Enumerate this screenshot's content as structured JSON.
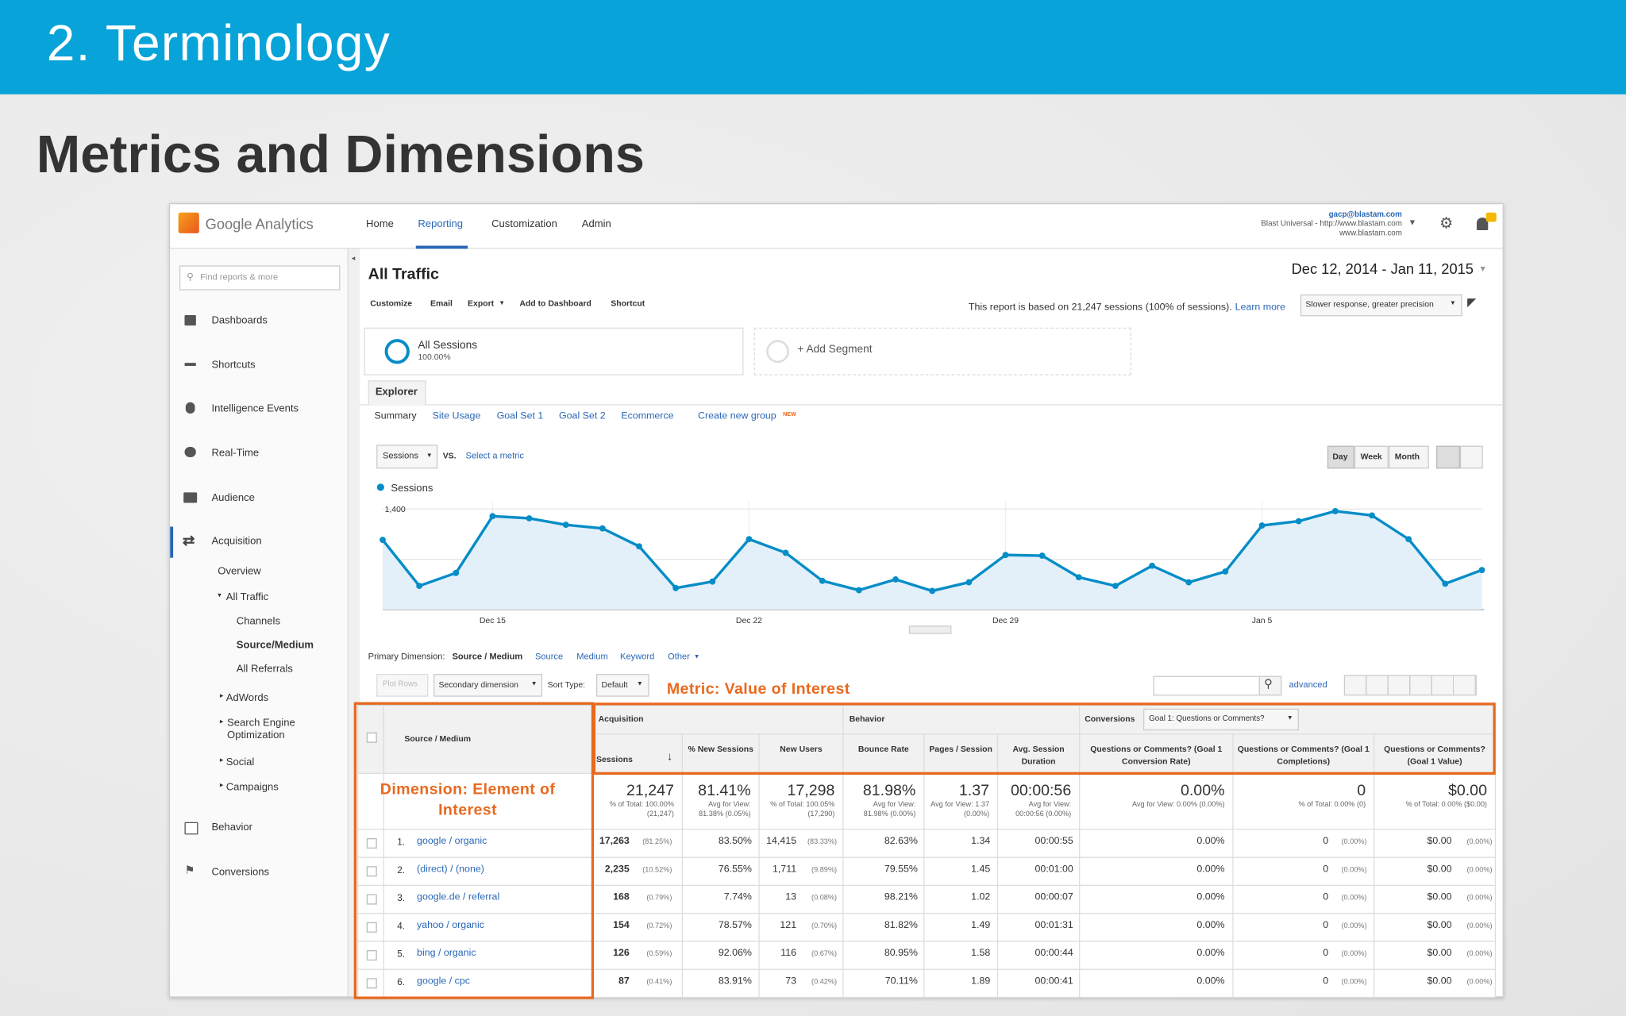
{
  "header": {
    "title": "2. Terminology",
    "subtitle": "Metrics and Dimensions"
  },
  "app": {
    "logo": "Google Analytics",
    "nav": [
      "Home",
      "Reporting",
      "Customization",
      "Admin"
    ],
    "account": {
      "email": "gacp@blastam.com",
      "property": "Blast Universal - http://www.blastam.com",
      "view": "www.blastam.com"
    },
    "search_placeholder": "Find reports & more",
    "sidebar": [
      "Dashboards",
      "Shortcuts",
      "Intelligence Events",
      "Real-Time",
      "Audience",
      "Acquisition",
      "Overview",
      "All Traffic",
      "Channels",
      "Source/Medium",
      "All Referrals",
      "AdWords",
      "Search Engine Optimization",
      "Social",
      "Campaigns",
      "Behavior",
      "Conversions"
    ]
  },
  "report": {
    "title": "All Traffic",
    "date_range": "Dec 12, 2014 - Jan 11, 2015",
    "toolbar": [
      "Customize",
      "Email",
      "Export",
      "Add to Dashboard",
      "Shortcut"
    ],
    "sampling_note": "This report is based on 21,247 sessions (100% of sessions).",
    "learn_more": "Learn more",
    "precision": "Slower response, greater precision",
    "segments": {
      "active": "All Sessions",
      "active_share": "100.00%",
      "add": "+ Add Segment"
    },
    "tab": "Explorer",
    "subtabs": [
      "Summary",
      "Site Usage",
      "Goal Set 1",
      "Goal Set 2",
      "Ecommerce",
      "Create new group"
    ],
    "new_badge": "NEW",
    "chart_controls": {
      "metric": "Sessions",
      "vs": "VS.",
      "select": "Select a metric",
      "intervals": [
        "Day",
        "Week",
        "Month"
      ]
    },
    "dimension_bar": {
      "label": "Primary Dimension:",
      "active": "Source / Medium",
      "options": [
        "Source",
        "Medium",
        "Keyword",
        "Other"
      ]
    },
    "table_controls": {
      "plot_rows": "Plot Rows",
      "secondary": "Secondary dimension",
      "sort_label": "Sort Type:",
      "sort": "Default",
      "advanced": "advanced"
    }
  },
  "annotations": {
    "metric": "Metric: Value of Interest",
    "dimension": "Dimension: Element of Interest"
  },
  "chart_data": {
    "type": "line",
    "categories": [
      null,
      null,
      null,
      "Dec 15",
      null,
      null,
      null,
      null,
      null,
      null,
      "Dec 22",
      null,
      null,
      null,
      null,
      null,
      null,
      "Dec 29",
      null,
      null,
      null,
      null,
      null,
      null,
      "Jan 5",
      null,
      null,
      null,
      null,
      null,
      null
    ],
    "series": [
      {
        "name": "Sessions",
        "color": "#058dc7",
        "values": [
          970,
          330,
          510,
          1300,
          1270,
          1180,
          1130,
          880,
          300,
          390,
          980,
          790,
          400,
          270,
          420,
          260,
          380,
          760,
          750,
          450,
          330,
          610,
          380,
          530,
          1170,
          1230,
          1370,
          1310,
          980,
          360,
          550
        ]
      }
    ],
    "ylim": [
      0,
      1500
    ],
    "yticks": [
      700,
      {
        "value": 1400,
        "label": "1,400"
      }
    ],
    "grid": true
  },
  "table": {
    "groups": [
      "Acquisition",
      "Behavior",
      "Conversions"
    ],
    "goal": "Goal 1: Questions or Comments?",
    "columns": [
      "Source / Medium",
      "Sessions",
      "% New Sessions",
      "New Users",
      "Bounce Rate",
      "Pages / Session",
      "Avg. Session Duration",
      "Questions or Comments? (Goal 1 Conversion Rate)",
      "Questions or Comments? (Goal 1 Completions)",
      "Questions or Comments? (Goal 1 Value)"
    ],
    "totals": [
      [
        "21,247",
        "% of Total: 100.00% (21,247)"
      ],
      [
        "81.41%",
        "Avg for View: 81.38% (0.05%)"
      ],
      [
        "17,298",
        "% of Total: 100.05% (17,290)"
      ],
      [
        "81.98%",
        "Avg for View: 81.98% (0.00%)"
      ],
      [
        "1.37",
        "Avg for View: 1.37 (0.00%)"
      ],
      [
        "00:00:56",
        "Avg for View: 00:00:56 (0.00%)"
      ],
      [
        "0.00%",
        "Avg for View: 0.00% (0.00%)"
      ],
      [
        "0",
        "% of Total: 0.00% (0)"
      ],
      [
        "$0.00",
        "% of Total: 0.00% ($0.00)"
      ]
    ],
    "rows": [
      [
        "1.",
        "google / organic",
        "17,263",
        "(81.25%)",
        "83.50%",
        "14,415",
        "(83.33%)",
        "82.63%",
        "1.34",
        "00:00:55",
        "0.00%",
        "0",
        "(0.00%)",
        "$0.00",
        "(0.00%)"
      ],
      [
        "2.",
        "(direct) / (none)",
        "2,235",
        "(10.52%)",
        "76.55%",
        "1,711",
        "(9.89%)",
        "79.55%",
        "1.45",
        "00:01:00",
        "0.00%",
        "0",
        "(0.00%)",
        "$0.00",
        "(0.00%)"
      ],
      [
        "3.",
        "google.de / referral",
        "168",
        "(0.79%)",
        "7.74%",
        "13",
        "(0.08%)",
        "98.21%",
        "1.02",
        "00:00:07",
        "0.00%",
        "0",
        "(0.00%)",
        "$0.00",
        "(0.00%)"
      ],
      [
        "4.",
        "yahoo / organic",
        "154",
        "(0.72%)",
        "78.57%",
        "121",
        "(0.70%)",
        "81.82%",
        "1.49",
        "00:01:31",
        "0.00%",
        "0",
        "(0.00%)",
        "$0.00",
        "(0.00%)"
      ],
      [
        "5.",
        "bing / organic",
        "126",
        "(0.59%)",
        "92.06%",
        "116",
        "(0.67%)",
        "80.95%",
        "1.58",
        "00:00:44",
        "0.00%",
        "0",
        "(0.00%)",
        "$0.00",
        "(0.00%)"
      ],
      [
        "6.",
        "google / cpc",
        "87",
        "(0.41%)",
        "83.91%",
        "73",
        "(0.42%)",
        "70.11%",
        "1.89",
        "00:00:41",
        "0.00%",
        "0",
        "(0.00%)",
        "$0.00",
        "(0.00%)"
      ]
    ]
  }
}
